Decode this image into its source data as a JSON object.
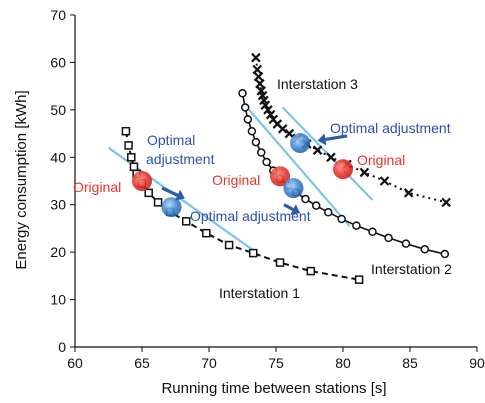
{
  "chart_data": {
    "type": "scatter",
    "xlabel": "Running time between stations [s]",
    "ylabel": "Energy consumption [kWh]",
    "xlim": [
      60,
      90
    ],
    "ylim": [
      0,
      70
    ],
    "xticks": [
      "60",
      "65",
      "70",
      "75",
      "80",
      "85",
      "90"
    ],
    "yticks": [
      "0",
      "10",
      "20",
      "30",
      "40",
      "50",
      "60",
      "70"
    ],
    "grid": false,
    "colors": {
      "original": "#e8332a",
      "optimal": "#3a7fd0",
      "guide_line": "#7cc4ea",
      "arrow": "#2f5aa8",
      "adjustment_text": "#2f4fb0"
    },
    "series": [
      {
        "name": "Interstation 1",
        "marker": "square",
        "line_style": "dashed",
        "x": [
          63.8,
          64.0,
          64.2,
          64.4,
          64.6,
          65.0,
          65.5,
          66.2,
          67.1,
          68.3,
          69.8,
          71.5,
          73.3,
          75.3,
          77.6,
          81.2
        ],
        "y": [
          45.5,
          42.5,
          40.0,
          38.0,
          36.5,
          34.5,
          32.5,
          30.5,
          28.5,
          26.5,
          24.0,
          21.5,
          19.8,
          17.8,
          16.0,
          14.2
        ]
      },
      {
        "name": "Interstation 2",
        "marker": "circle",
        "line_style": "solid",
        "x": [
          72.5,
          72.7,
          72.9,
          73.2,
          73.5,
          73.9,
          74.3,
          74.8,
          75.3,
          75.9,
          76.5,
          77.2,
          78.0,
          78.9,
          79.9,
          81.0,
          82.2,
          83.4,
          84.7,
          86.1,
          87.6
        ],
        "y": [
          53.5,
          50.5,
          48.0,
          45.5,
          43.2,
          41.0,
          39.0,
          37.2,
          35.5,
          34.0,
          32.6,
          31.2,
          29.8,
          28.4,
          27.0,
          25.6,
          24.3,
          23.0,
          21.8,
          20.6,
          19.6
        ]
      },
      {
        "name": "Interstation 3",
        "marker": "x",
        "line_style": "dotted",
        "x": [
          73.5,
          73.6,
          73.7,
          73.8,
          73.9,
          74.0,
          74.1,
          74.2,
          74.4,
          74.6,
          74.8,
          75.1,
          75.5,
          76.0,
          76.6,
          77.3,
          78.1,
          79.1,
          80.3,
          81.6,
          83.1,
          84.9,
          87.7
        ],
        "y": [
          61.0,
          58.5,
          57.0,
          55.5,
          54.0,
          53.0,
          52.0,
          51.0,
          50.0,
          49.0,
          48.0,
          47.0,
          46.0,
          45.0,
          44.0,
          42.8,
          41.5,
          40.0,
          38.5,
          36.8,
          35.0,
          32.5,
          30.5
        ]
      }
    ],
    "original_points": [
      {
        "x": 65.0,
        "y": 35.0
      },
      {
        "x": 75.3,
        "y": 36.0
      },
      {
        "x": 80.0,
        "y": 37.5
      }
    ],
    "optimal_points": [
      {
        "x": 67.2,
        "y": 29.5
      },
      {
        "x": 76.3,
        "y": 33.5
      },
      {
        "x": 76.8,
        "y": 43.0
      }
    ],
    "guide_lines": [
      {
        "from": [
          62.5,
          42.0
        ],
        "to": [
          73.5,
          20.0
        ]
      },
      {
        "from": [
          73.0,
          50.0
        ],
        "to": [
          80.5,
          25.5
        ]
      },
      {
        "from": [
          75.5,
          50.5
        ],
        "to": [
          82.2,
          31.0
        ]
      }
    ],
    "arrows": [
      {
        "from": [
          66.5,
          33.5
        ],
        "to": [
          68.2,
          31.3
        ]
      },
      {
        "from": [
          75.6,
          30.0
        ],
        "to": [
          76.8,
          28.2
        ]
      },
      {
        "from": [
          80.3,
          44.5
        ],
        "to": [
          78.1,
          43.5
        ]
      }
    ],
    "annotations": {
      "interstation1": "Interstation 1",
      "interstation2": "Interstation 2",
      "interstation3": "Interstation 3",
      "original1": "Original",
      "original2": "Original",
      "original3": "Original",
      "optimal1_line1": "Optimal",
      "optimal1_line2": "adjustment",
      "optimal2": "Optimal adjustment",
      "optimal3": "Optimal adjustment"
    }
  }
}
